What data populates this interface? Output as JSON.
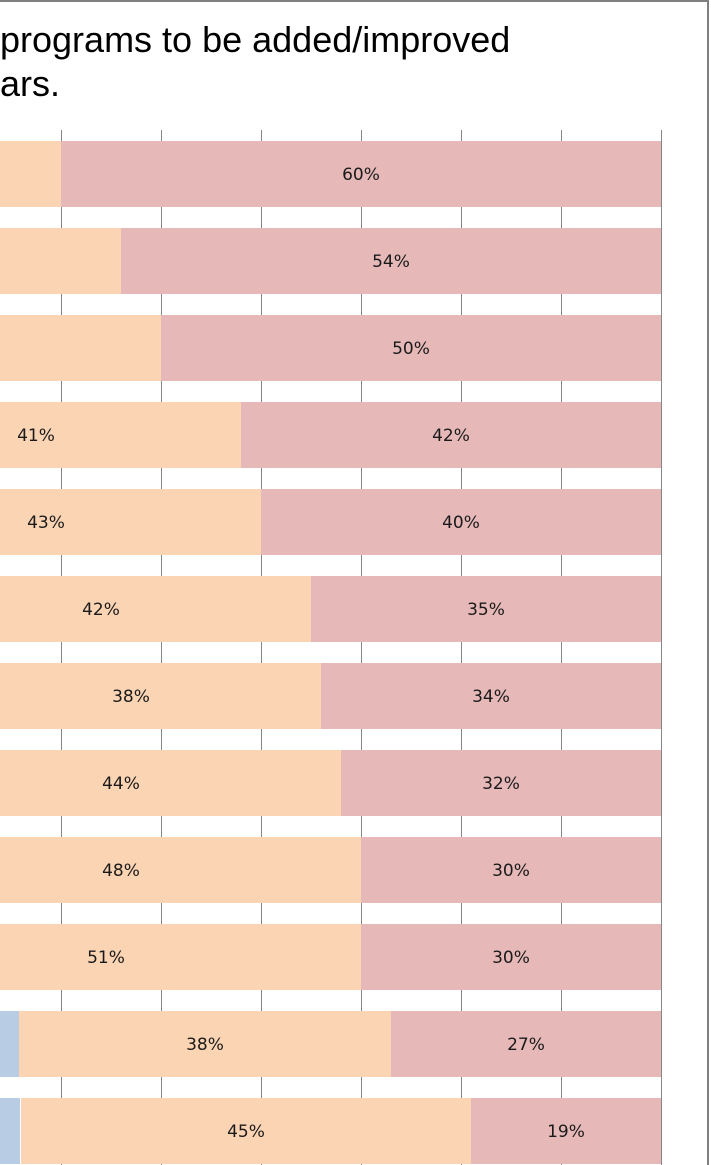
{
  "title_lines": [
    "programs to be added/improved",
    "ars."
  ],
  "chart_data": {
    "type": "bar",
    "orientation": "horizontal",
    "stacked": true,
    "xlim": [
      0,
      100
    ],
    "grid": true,
    "series": [
      {
        "color": "#b8cce4",
        "values": [
          null,
          null,
          null,
          null,
          null,
          null,
          null,
          null,
          null,
          null,
          null,
          null
        ]
      },
      {
        "color": "#fbd4b4",
        "values": [
          null,
          null,
          null,
          41,
          43,
          42,
          38,
          44,
          48,
          51,
          38,
          45
        ],
        "labels": [
          "",
          "",
          "",
          "41%",
          "43%",
          "42%",
          "38%",
          "44%",
          "48%",
          "51%",
          "38%",
          "45%"
        ]
      },
      {
        "color": "#e6b9b8",
        "values": [
          60,
          54,
          50,
          42,
          40,
          35,
          34,
          32,
          30,
          30,
          27,
          19
        ],
        "labels": [
          "60%",
          "54%",
          "50%",
          "42%",
          "40%",
          "35%",
          "34%",
          "32%",
          "30%",
          "30%",
          "27%",
          "19%"
        ]
      }
    ]
  }
}
